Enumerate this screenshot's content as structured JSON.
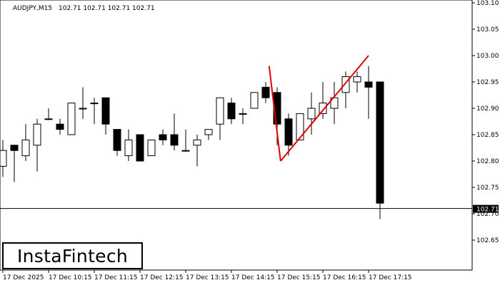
{
  "header": {
    "symbol_label": "AUDJPY,M15",
    "ohlc_values": "102.71 102.71 102.71 102.71"
  },
  "brand": {
    "name": "InstaFintech"
  },
  "colors": {
    "background": "#ffffff",
    "candle_stroke": "#000000",
    "bull_fill": "#ffffff",
    "bear_fill": "#000000",
    "pattern_line": "#e00000",
    "price_tag_bg": "#000000",
    "price_tag_text": "#ffffff"
  },
  "chart_data": {
    "type": "candlestick",
    "symbol": "AUDJPY",
    "timeframe": "M15",
    "y_ticks": [
      "103.10",
      "103.05",
      "103.00",
      "102.95",
      "102.90",
      "102.85",
      "102.80",
      "102.75",
      "102.70",
      "102.65"
    ],
    "ylim": [
      102.6,
      103.1
    ],
    "x_ticks": [
      {
        "label": "17 Dec 2025",
        "index": 0
      },
      {
        "label": "17 Dec 10:15",
        "index": 4
      },
      {
        "label": "17 Dec 11:15",
        "index": 8
      },
      {
        "label": "17 Dec 12:15",
        "index": 12
      },
      {
        "label": "17 Dec 13:15",
        "index": 16
      },
      {
        "label": "17 Dec 14:15",
        "index": 20
      },
      {
        "label": "17 Dec 15:15",
        "index": 24
      },
      {
        "label": "17 Dec 16:15",
        "index": 28
      },
      {
        "label": "17 Dec 17:15",
        "index": 32
      }
    ],
    "current_price": 102.71,
    "current_price_label": "102.71",
    "candles": [
      {
        "o": 102.79,
        "h": 102.84,
        "l": 102.77,
        "c": 102.82
      },
      {
        "o": 102.83,
        "h": 102.83,
        "l": 102.76,
        "c": 102.82
      },
      {
        "o": 102.81,
        "h": 102.87,
        "l": 102.8,
        "c": 102.84
      },
      {
        "o": 102.83,
        "h": 102.88,
        "l": 102.78,
        "c": 102.87
      },
      {
        "o": 102.88,
        "h": 102.9,
        "l": 102.88,
        "c": 102.88
      },
      {
        "o": 102.87,
        "h": 102.88,
        "l": 102.85,
        "c": 102.86
      },
      {
        "o": 102.85,
        "h": 102.91,
        "l": 102.85,
        "c": 102.91
      },
      {
        "o": 102.9,
        "h": 102.94,
        "l": 102.88,
        "c": 102.9
      },
      {
        "o": 102.91,
        "h": 102.92,
        "l": 102.87,
        "c": 102.91
      },
      {
        "o": 102.92,
        "h": 102.92,
        "l": 102.85,
        "c": 102.87
      },
      {
        "o": 102.86,
        "h": 102.86,
        "l": 102.81,
        "c": 102.82
      },
      {
        "o": 102.81,
        "h": 102.86,
        "l": 102.8,
        "c": 102.84
      },
      {
        "o": 102.85,
        "h": 102.85,
        "l": 102.8,
        "c": 102.8
      },
      {
        "o": 102.81,
        "h": 102.84,
        "l": 102.81,
        "c": 102.84
      },
      {
        "o": 102.85,
        "h": 102.86,
        "l": 102.83,
        "c": 102.84
      },
      {
        "o": 102.85,
        "h": 102.89,
        "l": 102.82,
        "c": 102.83
      },
      {
        "o": 102.82,
        "h": 102.86,
        "l": 102.82,
        "c": 102.82
      },
      {
        "o": 102.83,
        "h": 102.85,
        "l": 102.79,
        "c": 102.84
      },
      {
        "o": 102.85,
        "h": 102.86,
        "l": 102.84,
        "c": 102.86
      },
      {
        "o": 102.87,
        "h": 102.92,
        "l": 102.84,
        "c": 102.92
      },
      {
        "o": 102.91,
        "h": 102.92,
        "l": 102.87,
        "c": 102.88
      },
      {
        "o": 102.89,
        "h": 102.9,
        "l": 102.87,
        "c": 102.89
      },
      {
        "o": 102.9,
        "h": 102.93,
        "l": 102.9,
        "c": 102.93
      },
      {
        "o": 102.94,
        "h": 102.95,
        "l": 102.91,
        "c": 102.92
      },
      {
        "o": 102.93,
        "h": 102.94,
        "l": 102.83,
        "c": 102.87
      },
      {
        "o": 102.88,
        "h": 102.89,
        "l": 102.81,
        "c": 102.83
      },
      {
        "o": 102.84,
        "h": 102.89,
        "l": 102.84,
        "c": 102.89
      },
      {
        "o": 102.88,
        "h": 102.93,
        "l": 102.85,
        "c": 102.9
      },
      {
        "o": 102.89,
        "h": 102.95,
        "l": 102.88,
        "c": 102.91
      },
      {
        "o": 102.9,
        "h": 102.95,
        "l": 102.87,
        "c": 102.92
      },
      {
        "o": 102.93,
        "h": 102.97,
        "l": 102.9,
        "c": 102.96
      },
      {
        "o": 102.95,
        "h": 102.97,
        "l": 102.93,
        "c": 102.96
      },
      {
        "o": 102.95,
        "h": 102.98,
        "l": 102.88,
        "c": 102.94
      },
      {
        "o": 102.95,
        "h": 102.95,
        "l": 102.69,
        "c": 102.72
      }
    ],
    "pattern_lines": [
      {
        "from": {
          "index": 23.3,
          "price": 102.98
        },
        "to": {
          "index": 24.3,
          "price": 102.8
        }
      },
      {
        "from": {
          "index": 24.3,
          "price": 102.8
        },
        "to": {
          "index": 32,
          "price": 103.0
        }
      }
    ]
  }
}
